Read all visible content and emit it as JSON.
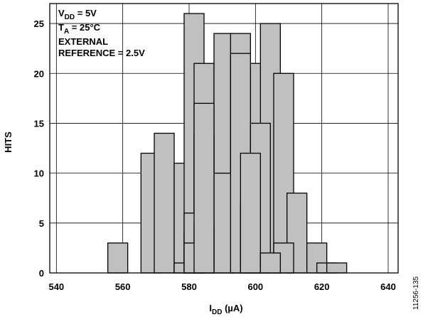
{
  "chart_data": {
    "type": "bar",
    "xlabel": {
      "main": "I",
      "sub": "DD",
      "unit": " (µA)"
    },
    "ylabel": "HITS",
    "xlim": [
      538,
      643
    ],
    "ylim": [
      0,
      27
    ],
    "x_ticks": [
      540,
      560,
      580,
      600,
      620,
      640
    ],
    "y_ticks": [
      0,
      5,
      10,
      15,
      20,
      25
    ],
    "grid": true,
    "bar_width": 6.0,
    "bar_color": "#c0c0c0",
    "series": [
      {
        "x": [
          558.5,
          568.5,
          572.5,
          578.5,
          581.5,
          584.5,
          590.5,
          595.5,
          601.5,
          604.5,
          608.5,
          612.5,
          618.5,
          621.5,
          624.5
        ],
        "values": [
          3,
          12,
          14,
          11,
          26,
          21,
          24,
          24,
          21,
          25,
          20,
          8,
          3,
          1,
          1
        ]
      },
      {
        "x": [
          578.5,
          581.5,
          584.5,
          590.5,
          595.5,
          598.5,
          601.5,
          608.5
        ],
        "values": [
          1,
          4,
          14,
          10,
          22,
          7,
          15,
          3
        ]
      },
      {
        "x": [
          581.5,
          584.5,
          598.5
        ],
        "values": [
          6,
          5,
          12
        ]
      },
      {
        "x": [
          581.5,
          604.5
        ],
        "values": [
          3,
          2
        ]
      },
      {
        "x": [
          584.5
        ],
        "values": [
          17
        ]
      }
    ],
    "conditions": [
      {
        "main": "V",
        "sub": "DD",
        "rest": " = 5V"
      },
      {
        "main": "T",
        "sub": "A",
        "rest": " = 25°C"
      },
      {
        "main": "EXTERNAL",
        "sub": "",
        "rest": ""
      },
      {
        "main": "REFERENCE = 2.5V",
        "sub": "",
        "rest": ""
      }
    ],
    "figure_id": "11256-135"
  }
}
